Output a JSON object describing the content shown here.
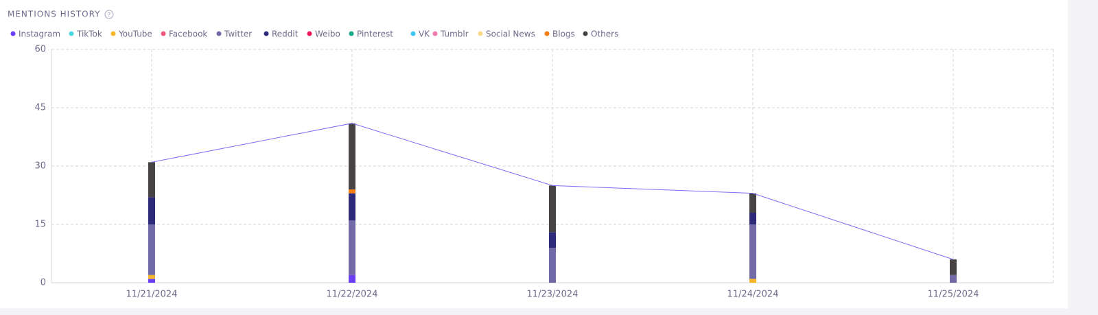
{
  "chart_data": {
    "type": "stacked-bar",
    "title": "MENTIONS HISTORY",
    "categories": [
      "11/21/2024",
      "11/22/2024",
      "11/23/2024",
      "11/24/2024",
      "11/25/2024"
    ],
    "series": [
      {
        "name": "Instagram",
        "color": "#6b3ff5",
        "values": [
          1,
          2,
          0,
          0,
          0
        ]
      },
      {
        "name": "TikTok",
        "color": "#4dd9e0",
        "values": [
          0,
          0,
          0,
          0,
          0
        ]
      },
      {
        "name": "YouTube",
        "color": "#f7b52c",
        "values": [
          1,
          0,
          0,
          1,
          0
        ]
      },
      {
        "name": "Facebook",
        "color": "#f0577c",
        "values": [
          0,
          0,
          0,
          0,
          0
        ]
      },
      {
        "name": "Twitter",
        "color": "#726aa6",
        "values": [
          13,
          14,
          9,
          14,
          2
        ]
      },
      {
        "name": "Reddit",
        "color": "#2e2a7a",
        "values": [
          7,
          7,
          4,
          3,
          0
        ]
      },
      {
        "name": "Weibo",
        "color": "#f0195c",
        "values": [
          0,
          0,
          0,
          0,
          0
        ]
      },
      {
        "name": "Pinterest",
        "color": "#1ba98a",
        "values": [
          0,
          0,
          0,
          0,
          0
        ]
      },
      {
        "name": "VK",
        "color": "#3ec4f2",
        "values": [
          0,
          0,
          0,
          0,
          0
        ]
      },
      {
        "name": "Tumblr",
        "color": "#f07bb0",
        "values": [
          0,
          0,
          0,
          0,
          0
        ]
      },
      {
        "name": "Social News",
        "color": "#fbd98a",
        "values": [
          0,
          0,
          0,
          0,
          0
        ]
      },
      {
        "name": "Blogs",
        "color": "#f57f17",
        "values": [
          0,
          1,
          0,
          0,
          0
        ]
      },
      {
        "name": "Others",
        "color": "#474344",
        "values": [
          9,
          17,
          12,
          5,
          4
        ]
      }
    ],
    "totals": [
      31,
      41,
      25,
      23,
      6
    ],
    "total_color": "#7b6cf6",
    "ylim": [
      0,
      60
    ],
    "yticks": [
      0,
      15,
      30,
      45,
      60
    ],
    "grid": true
  }
}
